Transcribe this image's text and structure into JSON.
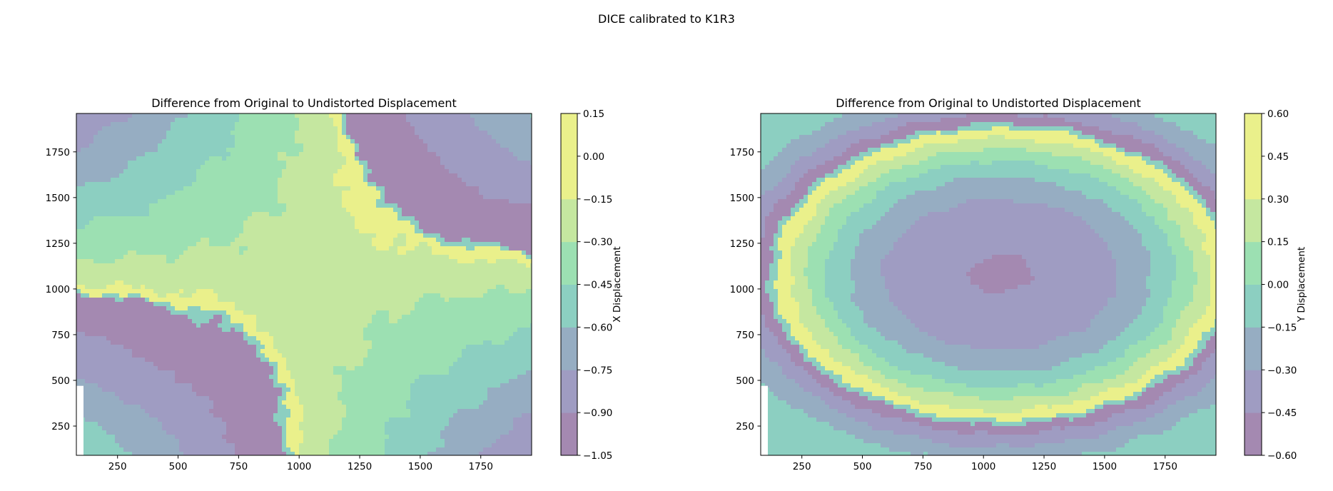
{
  "figure_title": "DICE calibrated to K1R3",
  "colors": {
    "band": [
      "#a489b1",
      "#9f9cc2",
      "#96adc2",
      "#8ccfc1",
      "#9ce0b2",
      "#c5e7a0",
      "#eaf08b"
    ]
  },
  "chart_data": [
    {
      "type": "contour",
      "title": "Difference from Original to Undistorted Displacement",
      "xlabel": "",
      "ylabel": "",
      "xlim": [
        80,
        1960
      ],
      "ylim": [
        90,
        1960
      ],
      "x_ticks": [
        250,
        500,
        750,
        1000,
        1250,
        1500,
        1750
      ],
      "y_ticks": [
        250,
        500,
        750,
        1000,
        1250,
        1500,
        1750
      ],
      "colorbar": {
        "label": "X Displacement",
        "levels": [
          -1.05,
          -0.9,
          -0.75,
          -0.6,
          -0.45,
          -0.3,
          -0.15,
          0.0,
          0.15
        ],
        "tick_labels": [
          "−1.05",
          "−0.90",
          "−0.75",
          "−0.60",
          "−0.45",
          "−0.30",
          "−0.15",
          "0.00",
          "0.15"
        ]
      },
      "pattern": "saddle",
      "center": [
        1070,
        1080
      ]
    },
    {
      "type": "contour",
      "title": "Difference from Original to Undistorted Displacement",
      "xlabel": "",
      "ylabel": "",
      "xlim": [
        80,
        1960
      ],
      "ylim": [
        90,
        1960
      ],
      "x_ticks": [
        250,
        500,
        750,
        1000,
        1250,
        1500,
        1750
      ],
      "y_ticks": [
        250,
        500,
        750,
        1000,
        1250,
        1500,
        1750
      ],
      "colorbar": {
        "label": "Y Displacement",
        "levels": [
          -0.6,
          -0.45,
          -0.3,
          -0.15,
          0.0,
          0.15,
          0.3,
          0.45,
          0.6
        ],
        "tick_labels": [
          "−0.60",
          "−0.45",
          "−0.30",
          "−0.15",
          "0.00",
          "0.15",
          "0.30",
          "0.45",
          "0.60"
        ]
      },
      "pattern": "elliptic",
      "center": [
        1070,
        1080
      ]
    }
  ]
}
